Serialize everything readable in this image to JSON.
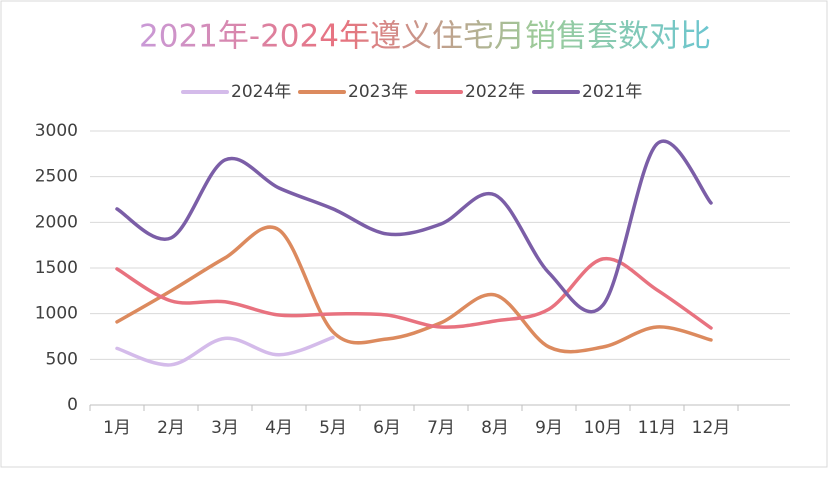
{
  "chart_data": {
    "type": "line",
    "title": "2021年-2024年遵义住宅月销售套数对比",
    "categories": [
      "1月",
      "2月",
      "3月",
      "4月",
      "5月",
      "6月",
      "7月",
      "8月",
      "9月",
      "10月",
      "11月",
      "12月"
    ],
    "series": [
      {
        "name": "2024年",
        "color": "#d4bbea",
        "values": [
          620,
          440,
          730,
          550,
          740,
          null,
          null,
          null,
          null,
          null,
          null,
          null
        ]
      },
      {
        "name": "2023年",
        "color": "#dc8a5e",
        "values": [
          910,
          1250,
          1610,
          1917,
          800,
          723,
          900,
          1205,
          635,
          635,
          854,
          712
        ]
      },
      {
        "name": "2022年",
        "color": "#e8727f",
        "values": [
          1490,
          1140,
          1130,
          985,
          997,
          985,
          854,
          920,
          1050,
          1600,
          1260,
          843
        ]
      },
      {
        "name": "2021年",
        "color": "#7b5ea7",
        "values": [
          2147,
          1829,
          2683,
          2376,
          2147,
          1873,
          1982,
          2300,
          1446,
          1095,
          2859,
          2212
        ]
      }
    ],
    "ylim": [
      0,
      3000
    ],
    "yticks": [
      0,
      500,
      1000,
      1500,
      2000,
      2500,
      3000
    ],
    "grid": true,
    "legend": "top"
  }
}
